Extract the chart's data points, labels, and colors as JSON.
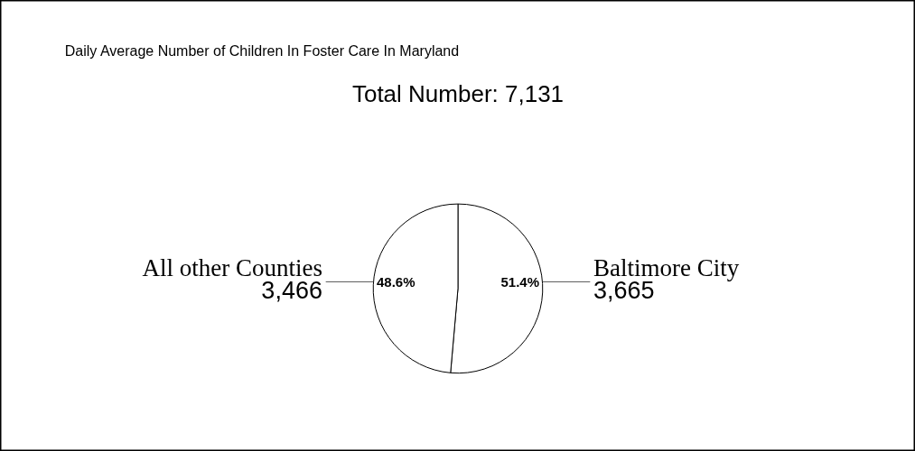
{
  "chart_data": {
    "type": "pie",
    "title": "Daily Average Number of Children In Foster Care In Maryland",
    "subtitle": "Total Number: 7,131",
    "categories": [
      "Baltimore City",
      "All other Counties"
    ],
    "values": [
      3665,
      3466
    ],
    "colors": [
      "#ffffff",
      "#ffffff"
    ],
    "value_labels": [
      "3,665",
      "3,466"
    ],
    "annotations": [
      "51.4%",
      "48.6%"
    ]
  }
}
